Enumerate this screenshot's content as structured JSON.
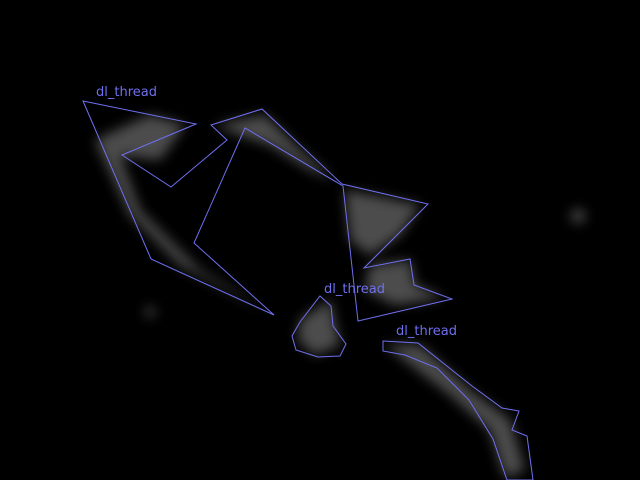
{
  "image": {
    "description_tag": "segmentation-overlay",
    "background_color": "#000000",
    "overlay_color": "#6f6ff0",
    "haze_color": "#8a8a8a"
  },
  "annotations": [
    {
      "label": "dl_thread"
    },
    {
      "label": "dl_thread"
    },
    {
      "label": "dl_thread"
    }
  ]
}
